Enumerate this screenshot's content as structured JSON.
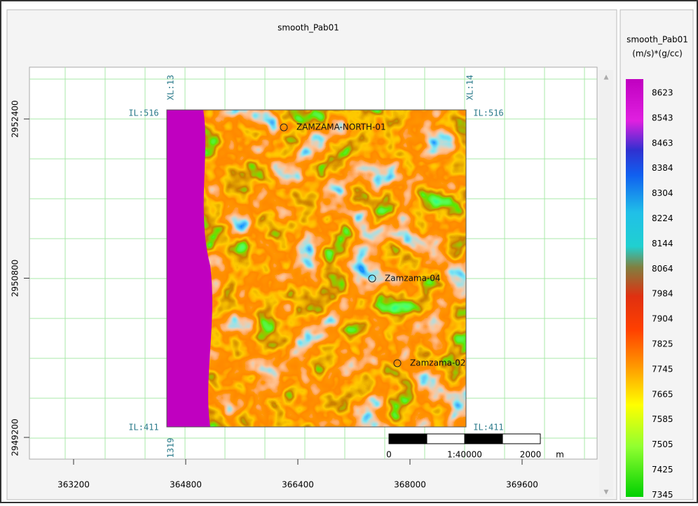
{
  "title": "smooth_Pab01",
  "x_ticks": [
    "363200",
    "364800",
    "366400",
    "368000",
    "369600"
  ],
  "y_ticks": [
    "2952400",
    "2950800",
    "2949200"
  ],
  "survey_labels": {
    "il_top_left": "IL:516",
    "il_top_right": "IL:516",
    "il_bottom_left": "IL:411",
    "il_bottom_right": "IL:411",
    "xl_top_left": "XL:13",
    "xl_top_right": "XL:14",
    "xl_bottom_left": "1319"
  },
  "wells": [
    {
      "label": "ZAMZAMA-NORTH-01"
    },
    {
      "label": "Zamzama-04"
    },
    {
      "label": "Zamzama-02"
    }
  ],
  "scale_bar": {
    "start": "0",
    "ratio": "1:40000",
    "end": "2000",
    "unit": "m"
  },
  "colorbar": {
    "title": "smooth_Pab01",
    "unit": "(m/s)*(g/cc)",
    "labels": [
      "8623",
      "8543",
      "8463",
      "8384",
      "8304",
      "8224",
      "8144",
      "8064",
      "7984",
      "7904",
      "7825",
      "7745",
      "7665",
      "7585",
      "7505",
      "7425",
      "7345"
    ]
  }
}
